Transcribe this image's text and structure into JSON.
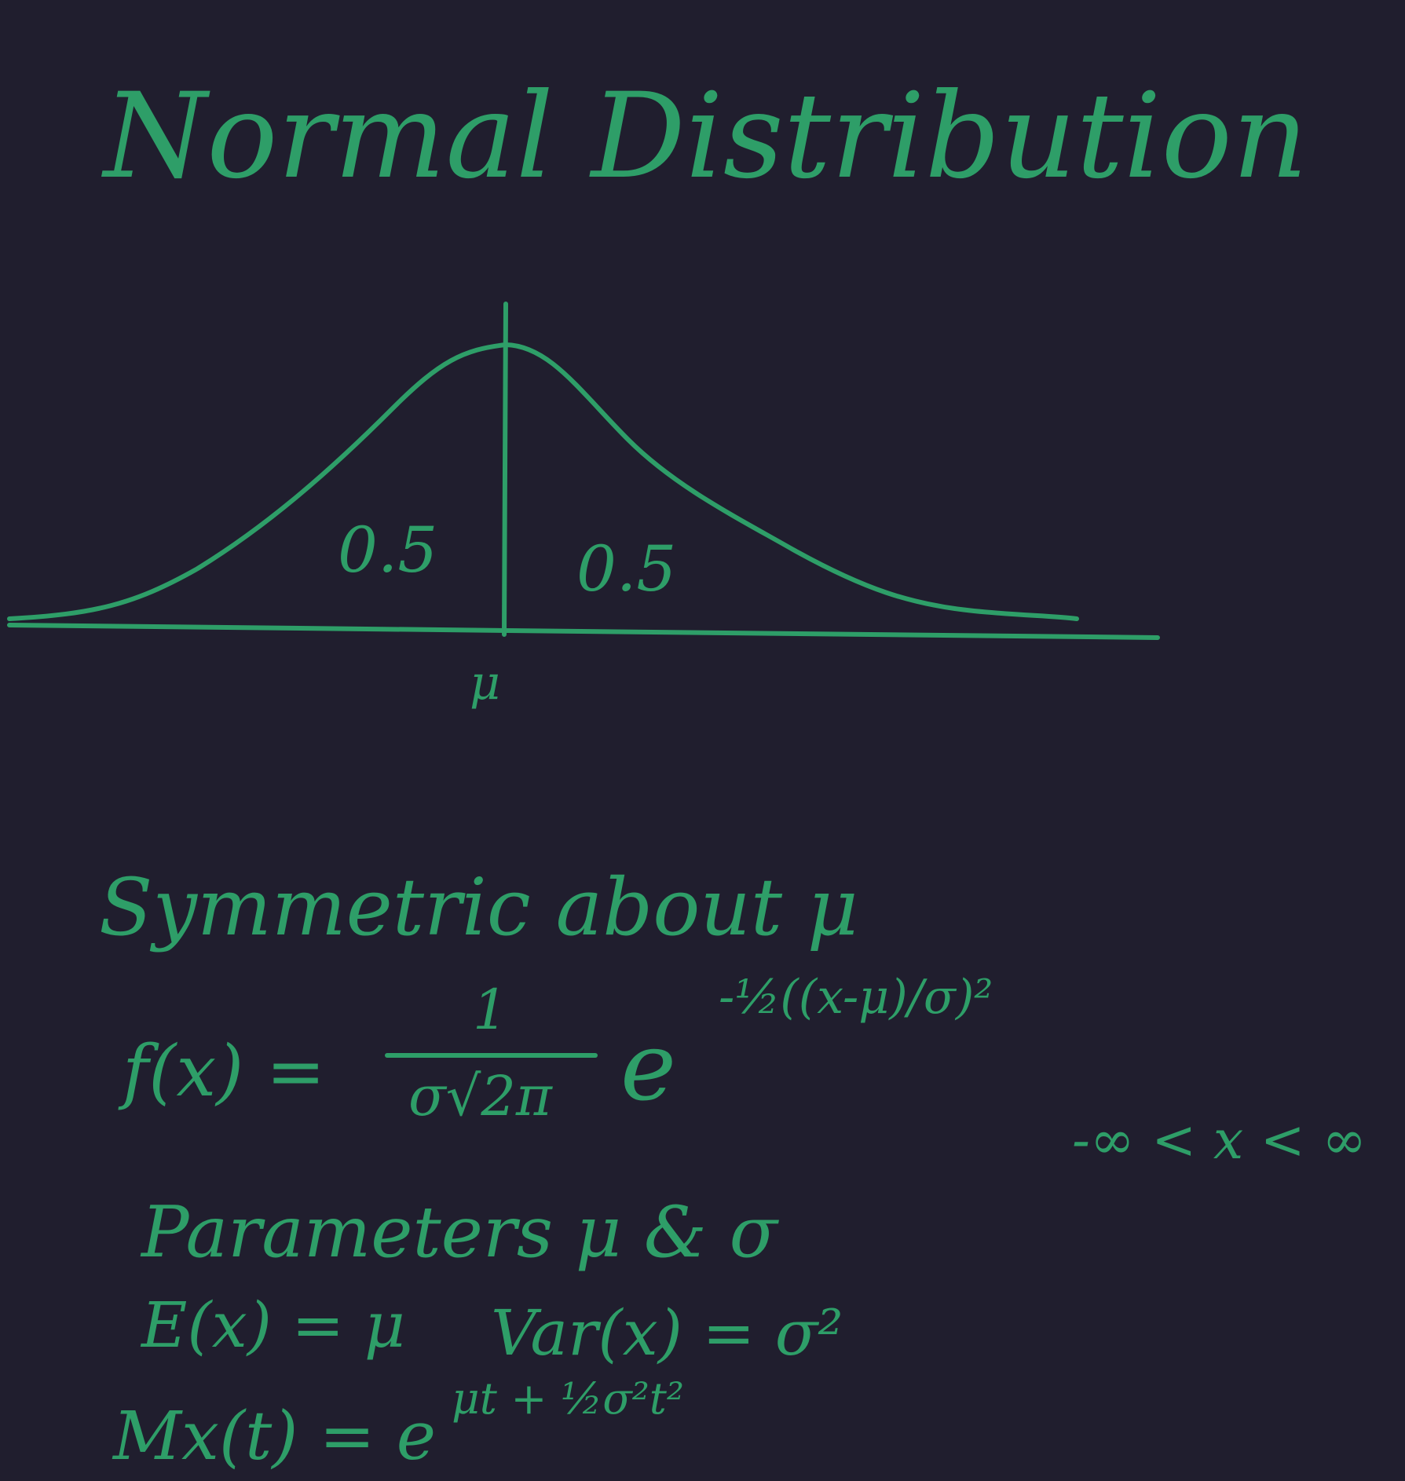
{
  "title": "Normal Distribution",
  "diagram": {
    "left_area": 0.5,
    "right_area": 0.5,
    "mean_label": "μ"
  },
  "notes": {
    "symmetry": "Symmetric about μ",
    "pdf": {
      "lhs": "f(x) =",
      "numerator": "1",
      "denominator": "σ√2π",
      "base": "e",
      "exponent": "-½((x-μ)/σ)²"
    },
    "domain": "-∞ < x < ∞",
    "parameters": "Parameters μ & σ",
    "mean": "E(x) = μ",
    "variance": "Var(x) = σ²",
    "mgf": {
      "lhs": "Mx(t) = e",
      "exponent": "μt + ½σ²t²"
    }
  }
}
